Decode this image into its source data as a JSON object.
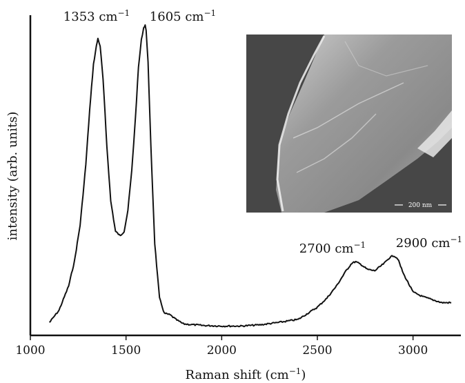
{
  "chart_data": {
    "type": "line",
    "title": "",
    "xlabel": "Raman shift (cm",
    "xlabel_sup": "−1",
    "xlabel_tail": ")",
    "ylabel": "intensity (arb. units)",
    "xlim": [
      1000,
      3250
    ],
    "ylim": [
      0,
      1.0
    ],
    "x_ticks": [
      "1000",
      "1500",
      "2000",
      "2500",
      "3000"
    ],
    "x_tick_values": [
      1000,
      1500,
      2000,
      2500,
      3000
    ],
    "grid": false,
    "legend": "none",
    "series": [
      {
        "x": [
          1100,
          1150,
          1200,
          1230,
          1260,
          1290,
          1310,
          1330,
          1345,
          1353,
          1365,
          1380,
          1400,
          1420,
          1445,
          1470,
          1490,
          1510,
          1530,
          1550,
          1565,
          1580,
          1592,
          1600,
          1605,
          1615,
          1630,
          1650,
          1675,
          1700,
          1730,
          1760,
          1800,
          1900,
          2000,
          2100,
          2200,
          2300,
          2400,
          2500,
          2550,
          2600,
          2650,
          2680,
          2700,
          2730,
          2760,
          2800,
          2850,
          2880,
          2900,
          2920,
          2950,
          3000,
          3050,
          3100,
          3150,
          3200
        ],
        "y": [
          0.02,
          0.06,
          0.14,
          0.22,
          0.34,
          0.54,
          0.72,
          0.87,
          0.93,
          0.955,
          0.93,
          0.82,
          0.6,
          0.42,
          0.32,
          0.305,
          0.32,
          0.39,
          0.52,
          0.7,
          0.86,
          0.95,
          0.99,
          1.0,
          0.98,
          0.88,
          0.6,
          0.28,
          0.1,
          0.05,
          0.045,
          0.03,
          0.015,
          0.01,
          0.008,
          0.008,
          0.012,
          0.02,
          0.03,
          0.07,
          0.1,
          0.14,
          0.19,
          0.215,
          0.22,
          0.21,
          0.195,
          0.19,
          0.215,
          0.235,
          0.24,
          0.23,
          0.18,
          0.12,
          0.105,
          0.095,
          0.085,
          0.085
        ]
      }
    ],
    "annotations": [
      {
        "text": "1353 cm",
        "sup": "−1",
        "x": 1353
      },
      {
        "text": "1605 cm",
        "sup": "−1",
        "x": 1605
      },
      {
        "text": "2700 cm",
        "sup": "−1",
        "x": 2700
      },
      {
        "text": "2900 cm",
        "sup": "−1",
        "x": 2900
      }
    ],
    "inset": {
      "description_icon": "sem-micrograph",
      "scale_bar": "200 nm",
      "background": "#4a4a4a"
    },
    "line_color": "#111111"
  }
}
